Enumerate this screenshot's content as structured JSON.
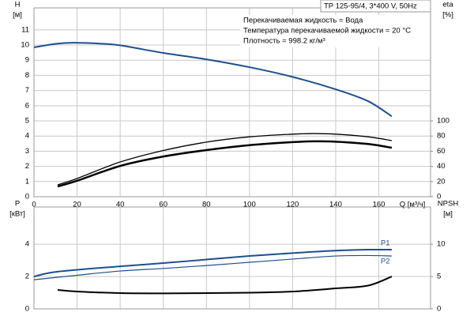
{
  "chart_data": [
    {
      "type": "line",
      "title": "TP 125-95/4, 3*400 V, 50Hz",
      "annotations": [
        "Перекачиваемая жидкость = Вода",
        "Температура перекачиваемой жидкости = 20 °C",
        "Плотность = 998.2 кг/м³"
      ],
      "xlabel": "Q [м³/ч]",
      "ylabel": "H",
      "yunit": "[м]",
      "y2label": "eta",
      "y2unit": "[%]",
      "xlim": [
        0,
        184
      ],
      "xticks": [
        0,
        20,
        40,
        60,
        80,
        100,
        120,
        140,
        160
      ],
      "ylim": [
        0,
        12.45
      ],
      "yticks": [
        0,
        1,
        2,
        3,
        4,
        5,
        6,
        7,
        8,
        9,
        10,
        11
      ],
      "y2lim": [
        0,
        249
      ],
      "y2ticks": [
        0,
        20,
        40,
        60,
        80,
        100
      ],
      "grid": true,
      "series": [
        {
          "color": "#1f4e8c",
          "linewidth": 2,
          "x": [
            0,
            10,
            18,
            30,
            40,
            60,
            80,
            100,
            120,
            140,
            155,
            166
          ],
          "values": [
            9.85,
            10.08,
            10.15,
            10.1,
            9.98,
            9.48,
            9.06,
            8.54,
            7.9,
            7.08,
            6.3,
            5.3
          ]
        },
        {
          "axis": "y2",
          "color": "#000000",
          "linewidth": 1.3,
          "x": [
            11,
            20,
            40,
            60,
            80,
            100,
            120,
            130,
            140,
            155,
            166
          ],
          "values": [
            15.6,
            24,
            45.8,
            61,
            72,
            79,
            82.5,
            83.3,
            82.5,
            79,
            74
          ]
        },
        {
          "axis": "y2",
          "color": "#000000",
          "linewidth": 2.5,
          "x": [
            11,
            20,
            40,
            60,
            80,
            100,
            120,
            130,
            140,
            155,
            166
          ],
          "values": [
            13.5,
            21,
            40.6,
            53,
            61.5,
            68,
            72,
            73,
            72.6,
            69.5,
            64.6
          ]
        }
      ]
    },
    {
      "type": "line",
      "ylabel": "P",
      "yunit": "[кВт]",
      "y2label": "NPSH",
      "y2unit": "[м]",
      "xlim": [
        0,
        184
      ],
      "xticks": [
        0,
        20,
        40,
        60,
        80,
        100,
        120,
        140,
        160
      ],
      "ylim": [
        0,
        6.3
      ],
      "yticks": [
        0,
        2,
        4
      ],
      "y2lim": [
        0,
        15.75
      ],
      "y2ticks": [
        0,
        5,
        10
      ],
      "grid": true,
      "series": [
        {
          "name": "P1",
          "color": "#1f4e8c",
          "linewidth": 2,
          "x": [
            0,
            11,
            40,
            60,
            80,
            100,
            120,
            140,
            155,
            166
          ],
          "values": [
            2.0,
            2.3,
            2.63,
            2.83,
            3.05,
            3.27,
            3.45,
            3.6,
            3.66,
            3.66
          ]
        },
        {
          "name": "P2",
          "color": "#1f4e8c",
          "linewidth": 1.2,
          "x": [
            0,
            20,
            40,
            60,
            80,
            100,
            120,
            140,
            155,
            166
          ],
          "values": [
            1.8,
            2.08,
            2.34,
            2.5,
            2.68,
            2.88,
            3.08,
            3.27,
            3.3,
            3.27
          ]
        },
        {
          "axis": "y2",
          "color": "#000000",
          "linewidth": 2,
          "x": [
            11,
            20,
            40,
            60,
            80,
            100,
            120,
            140,
            155,
            166
          ],
          "values": [
            2.93,
            2.68,
            2.44,
            2.4,
            2.44,
            2.5,
            2.68,
            3.17,
            3.6,
            5.0
          ]
        }
      ]
    }
  ]
}
